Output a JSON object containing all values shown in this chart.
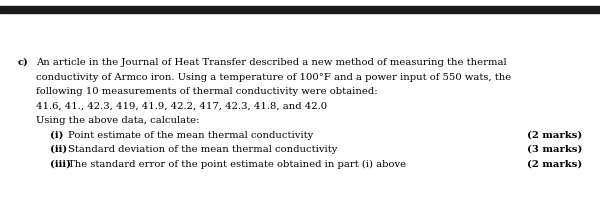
{
  "bg_color": "#ffffff",
  "top_bar_color": "#1a1a1a",
  "label_c": "c)",
  "line1": "An article in the Journal of Heat Transfer described a new method of measuring the thermal",
  "line2": "conductivity of Armco iron. Using a temperature of 100°F and a power input of 550 wats, the",
  "line3": "following 10 measurements of thermal conductivity were obtained:",
  "line4": "41.6, 41., 42.3, 419, 41.9, 42.2, 417, 42.3, 41.8, and 42.0",
  "line5": "Using the above data, calculate:",
  "item1_label": "(i)",
  "item1_text": "Point estimate of the mean thermal conductivity",
  "item1_marks": "(2 marks)",
  "item2_label": "(ii)",
  "item2_text": "Standard deviation of the mean thermal conductivity",
  "item2_marks": "(3 marks)",
  "item3_label": "(iii)",
  "item3_text": "The standard error of the point estimate obtained in part (i) above",
  "item3_marks": "(2 marks)",
  "font_size": 7.2,
  "font_family": "DejaVu Serif"
}
